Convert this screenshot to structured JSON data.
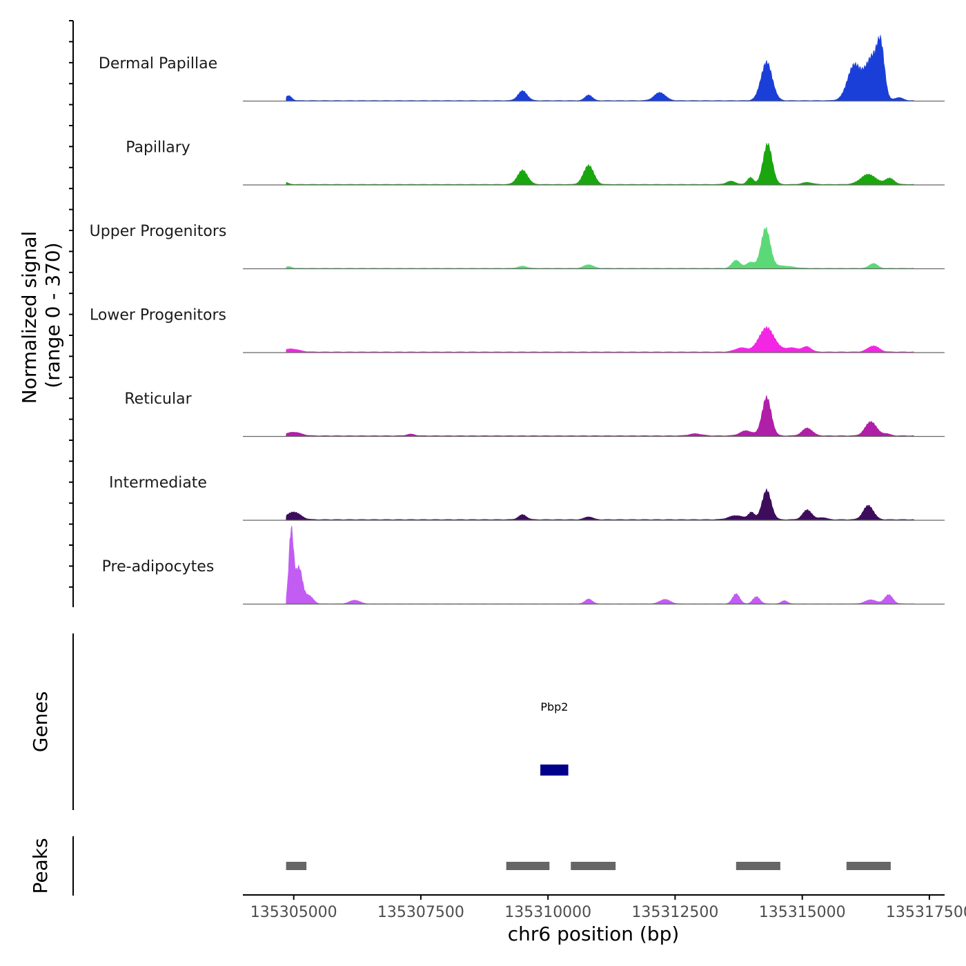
{
  "chart_data": {
    "type": "area",
    "title": "",
    "chromosome": "chr6",
    "xlabel": "chr6 position (bp)",
    "ylabel": "Normalized signal",
    "ylabel_range": "(range 0 - 370)",
    "xlim": [
      135304000,
      135317800
    ],
    "ylim": [
      0,
      370
    ],
    "x_ticks": [
      135305000,
      135307500,
      135310000,
      135312500,
      135315000,
      135317500
    ],
    "x_tick_labels": [
      "135305000",
      "135307500",
      "135310000",
      "135312500",
      "135315000",
      "135317500"
    ],
    "series": [
      {
        "name": "Dermal Papillae",
        "color": "#1a3fd9",
        "peaks": [
          [
            135304900,
            24,
            60
          ],
          [
            135309500,
            48,
            90
          ],
          [
            135310800,
            28,
            70
          ],
          [
            135312200,
            40,
            110
          ],
          [
            135314300,
            190,
            110
          ],
          [
            135316000,
            120,
            120
          ],
          [
            135316400,
            160,
            120
          ],
          [
            135316550,
            210,
            70
          ],
          [
            135316200,
            90,
            200
          ],
          [
            135316900,
            15,
            80
          ]
        ],
        "baseline": 3
      },
      {
        "name": "Papillary",
        "color": "#1aa60f",
        "peaks": [
          [
            135304800,
            14,
            70
          ],
          [
            135309500,
            70,
            100
          ],
          [
            135310800,
            95,
            100
          ],
          [
            135313600,
            16,
            90
          ],
          [
            135313980,
            35,
            60
          ],
          [
            135314320,
            200,
            90
          ],
          [
            135315100,
            10,
            100
          ],
          [
            135316300,
            50,
            150
          ],
          [
            135316720,
            30,
            90
          ]
        ],
        "baseline": 3
      },
      {
        "name": "Upper Progenitors",
        "color": "#5cd977",
        "peaks": [
          [
            135304900,
            8,
            60
          ],
          [
            135309500,
            10,
            90
          ],
          [
            135310800,
            18,
            90
          ],
          [
            135313700,
            40,
            80
          ],
          [
            135313980,
            30,
            80
          ],
          [
            135314280,
            195,
            90
          ],
          [
            135314600,
            12,
            200
          ],
          [
            135316400,
            24,
            80
          ]
        ],
        "baseline": 3
      },
      {
        "name": "Lower Progenitors",
        "color": "#f226e3",
        "peaks": [
          [
            135304950,
            15,
            150
          ],
          [
            135313800,
            20,
            120
          ],
          [
            135314300,
            120,
            150
          ],
          [
            135314800,
            20,
            150
          ],
          [
            135315100,
            24,
            80
          ],
          [
            135316400,
            30,
            110
          ]
        ],
        "baseline": 4
      },
      {
        "name": "Reticular",
        "color": "#b01fa8",
        "peaks": [
          [
            135305000,
            18,
            140
          ],
          [
            135313900,
            25,
            120
          ],
          [
            135314300,
            190,
            90
          ],
          [
            135315100,
            38,
            100
          ],
          [
            135316350,
            70,
            110
          ],
          [
            135316650,
            10,
            80
          ],
          [
            135312900,
            10,
            120
          ],
          [
            135307300,
            8,
            80
          ]
        ],
        "baseline": 4
      },
      {
        "name": "Intermediate",
        "color": "#3d0d5c",
        "peaks": [
          [
            135305000,
            38,
            130
          ],
          [
            135309500,
            24,
            80
          ],
          [
            135310800,
            14,
            80
          ],
          [
            135313700,
            20,
            140
          ],
          [
            135314000,
            35,
            60
          ],
          [
            135314300,
            145,
            90
          ],
          [
            135315100,
            48,
            90
          ],
          [
            135316300,
            70,
            100
          ],
          [
            135315400,
            10,
            80
          ]
        ],
        "baseline": 4
      },
      {
        "name": "Pre-adipocytes",
        "color": "#c25cf2",
        "peaks": [
          [
            135304950,
            360,
            45
          ],
          [
            135305100,
            180,
            70
          ],
          [
            135305300,
            40,
            80
          ],
          [
            135306200,
            18,
            100
          ],
          [
            135310800,
            24,
            70
          ],
          [
            135312300,
            22,
            100
          ],
          [
            135313700,
            50,
            70
          ],
          [
            135314100,
            35,
            70
          ],
          [
            135314650,
            16,
            60
          ],
          [
            135316350,
            20,
            110
          ],
          [
            135316700,
            45,
            80
          ]
        ],
        "baseline": 2
      }
    ],
    "genes": [
      {
        "name": "Pbp2",
        "start": 135309850,
        "end": 135310400,
        "color": "#00008b"
      }
    ],
    "peaks_track": [
      [
        135304850,
        135305250
      ],
      [
        135309180,
        135310030
      ],
      [
        135310450,
        135311330
      ],
      [
        135313700,
        135314570
      ],
      [
        135315870,
        135316740
      ]
    ],
    "panel_labels": {
      "genes": "Genes",
      "peaks": "Peaks"
    },
    "peak_color": "#666666"
  }
}
